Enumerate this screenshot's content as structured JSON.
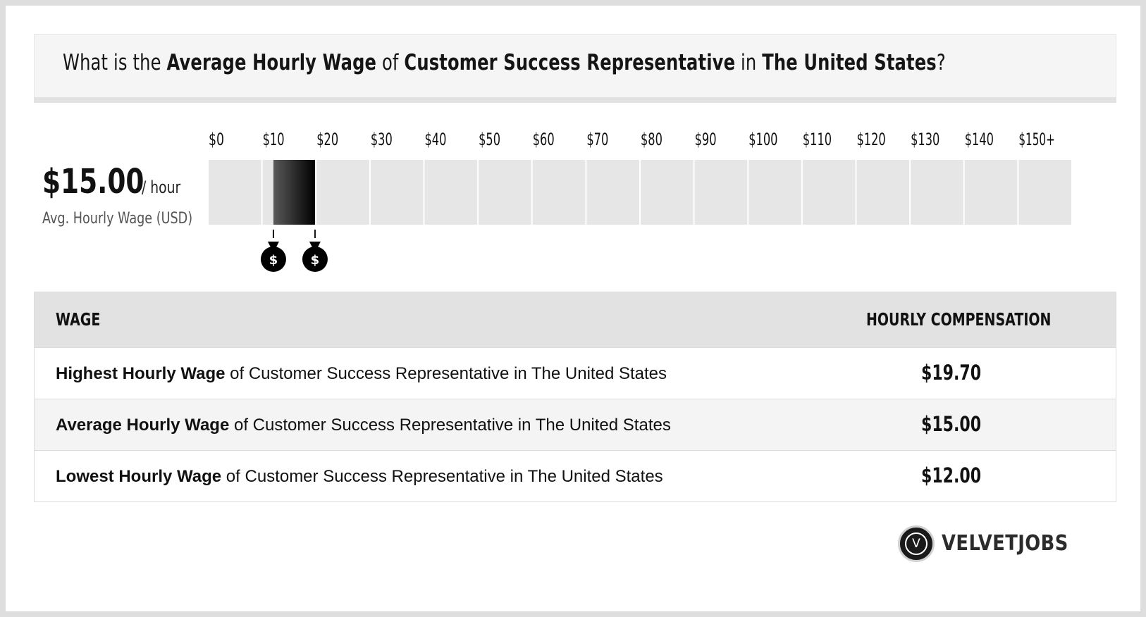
{
  "header": {
    "q_prefix": "What is the ",
    "q_metric": "Average Hourly Wage",
    "q_of": " of ",
    "q_job": "Customer Success Representative",
    "q_in": " in ",
    "q_location": "The United States",
    "q_suffix": "?"
  },
  "summary": {
    "value": "$15.00",
    "unit": "/ hour",
    "caption": "Avg. Hourly Wage (USD)"
  },
  "chart_data": {
    "type": "bar",
    "orientation": "horizontal-range",
    "ticks": [
      "$0",
      "$10",
      "$20",
      "$30",
      "$40",
      "$50",
      "$60",
      "$70",
      "$80",
      "$90",
      "$100",
      "$110",
      "$120",
      "$130",
      "$140",
      "$150+"
    ],
    "xlim": [
      0,
      150
    ],
    "range": {
      "low": 12.0,
      "high": 19.7
    },
    "markers": [
      "money-bag-icon",
      "money-bag-icon"
    ],
    "colors": {
      "track": "#e6e6e6",
      "range_start": "#5a5a5a",
      "range_end": "#000000"
    }
  },
  "table": {
    "headers": {
      "wage": "WAGE",
      "compensation": "HOURLY COMPENSATION"
    },
    "rows": [
      {
        "label_bold": "Highest Hourly Wage",
        "label_rest": " of Customer Success Representative in The United States",
        "value": "$19.70"
      },
      {
        "label_bold": "Average Hourly Wage",
        "label_rest": " of Customer Success Representative in The United States",
        "value": "$15.00"
      },
      {
        "label_bold": "Lowest Hourly Wage",
        "label_rest": " of Customer Success Representative in The United States",
        "value": "$12.00"
      }
    ]
  },
  "logo": {
    "letter": "V",
    "name": "VELVETJOBS",
    "icon": "velvetjobs-logo-icon"
  }
}
